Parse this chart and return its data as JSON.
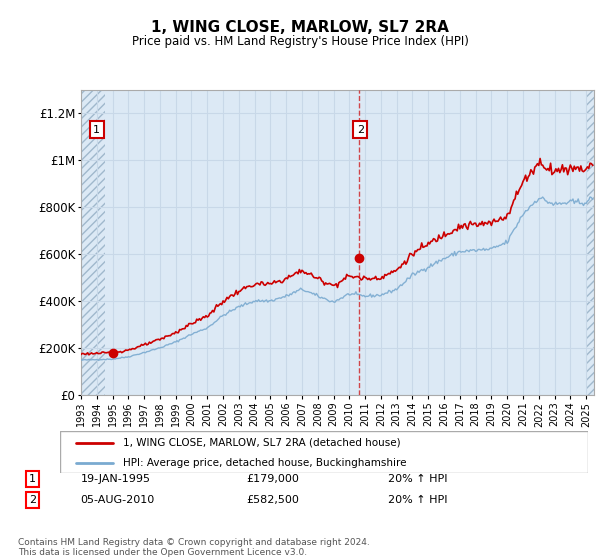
{
  "title": "1, WING CLOSE, MARLOW, SL7 2RA",
  "subtitle": "Price paid vs. HM Land Registry's House Price Index (HPI)",
  "ylim": [
    0,
    1300000
  ],
  "xlim_start": 1993.0,
  "xlim_end": 2025.5,
  "background_color": "#dce9f5",
  "hatch_color": "#b8cfe0",
  "grid_color": "#c8d8e8",
  "line1_color": "#cc0000",
  "line2_color": "#7aaad0",
  "sale1_year": 1995.05,
  "sale1_price": 179000,
  "sale2_year": 2010.6,
  "sale2_price": 582500,
  "hatch_end": 1994.5,
  "legend1": "1, WING CLOSE, MARLOW, SL7 2RA (detached house)",
  "legend2": "HPI: Average price, detached house, Buckinghamshire",
  "ann1_date": "19-JAN-1995",
  "ann1_price": "£179,000",
  "ann1_hpi": "20% ↑ HPI",
  "ann2_date": "05-AUG-2010",
  "ann2_price": "£582,500",
  "ann2_hpi": "20% ↑ HPI",
  "footer": "Contains HM Land Registry data © Crown copyright and database right 2024.\nThis data is licensed under the Open Government Licence v3.0."
}
